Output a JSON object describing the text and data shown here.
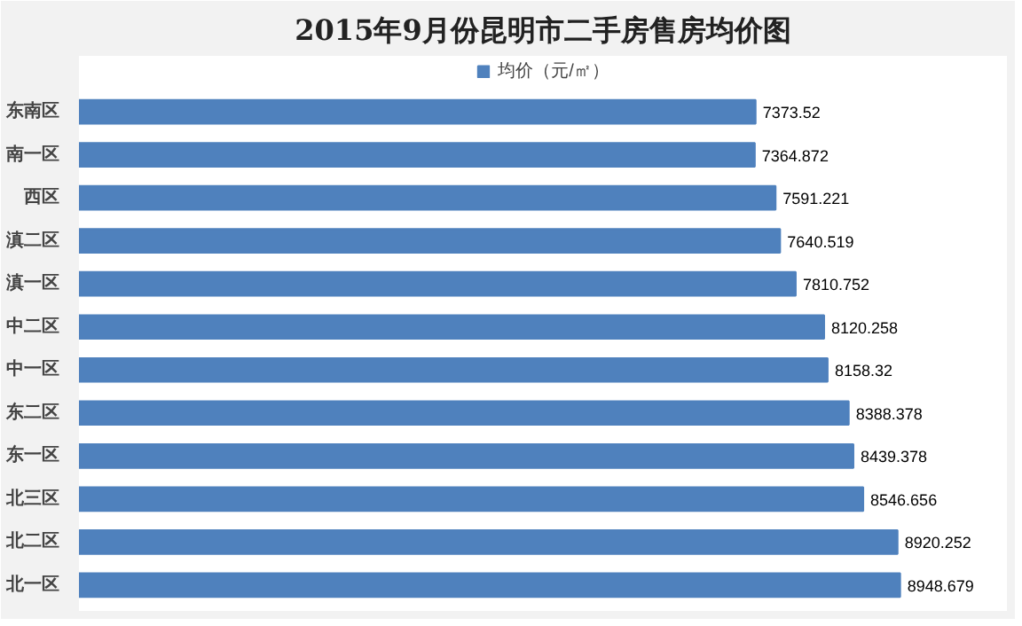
{
  "chart_data": {
    "type": "bar",
    "orientation": "horizontal",
    "title": "2015年9月份昆明市二手房售房均价图",
    "categories": [
      "东南区",
      "南一区",
      "西区",
      "滇二区",
      "滇一区",
      "中二区",
      "中一区",
      "东二区",
      "东一区",
      "北三区",
      "北二区",
      "北一区"
    ],
    "series": [
      {
        "name": "均价（元/㎡）",
        "color": "#4f81bd",
        "values": [
          7373.52,
          7364.872,
          7591.221,
          7640.519,
          7810.752,
          8120.258,
          8158.32,
          8388.378,
          8439.378,
          8546.656,
          8920.252,
          8948.679
        ]
      }
    ],
    "data_labels": true,
    "legend": "top",
    "grid": false
  }
}
